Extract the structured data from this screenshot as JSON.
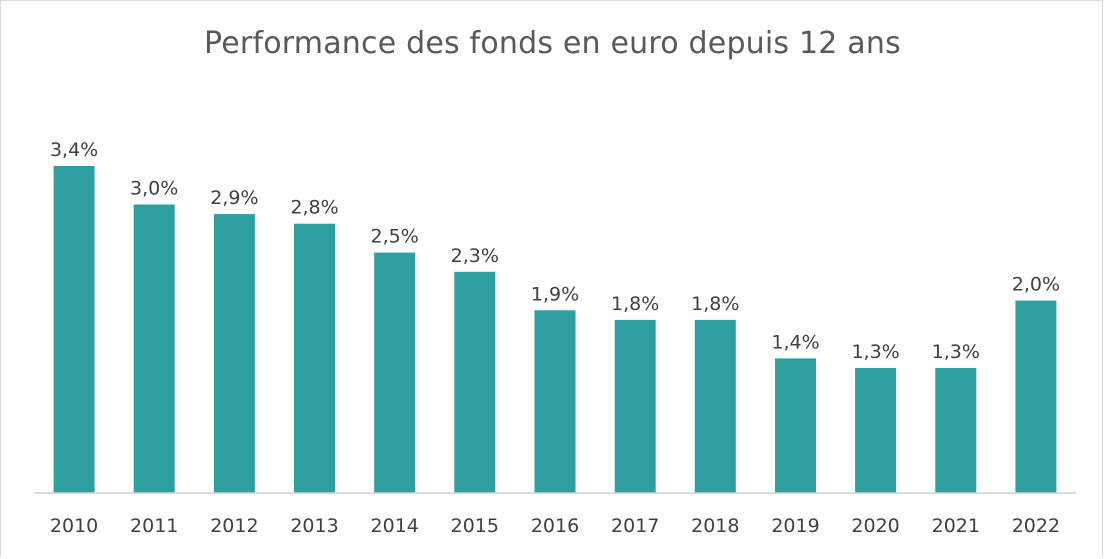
{
  "chart_data": {
    "type": "bar",
    "title": "Performance des fonds en euro depuis 12 ans",
    "categories": [
      "2010",
      "2011",
      "2012",
      "2013",
      "2014",
      "2015",
      "2016",
      "2017",
      "2018",
      "2019",
      "2020",
      "2021",
      "2022"
    ],
    "values": [
      3.4,
      3.0,
      2.9,
      2.8,
      2.5,
      2.3,
      1.9,
      1.8,
      1.8,
      1.4,
      1.3,
      1.3,
      2.0
    ],
    "data_labels": [
      "3,4%",
      "3,0%",
      "2,9%",
      "2,8%",
      "2,5%",
      "2,3%",
      "1,9%",
      "1,8%",
      "1,8%",
      "1,4%",
      "1,3%",
      "1,3%",
      "2,0%"
    ],
    "xlabel": "",
    "ylabel": "",
    "ylim": [
      0,
      3.4
    ],
    "grid": false,
    "bar_color": "#2e9fa0"
  }
}
